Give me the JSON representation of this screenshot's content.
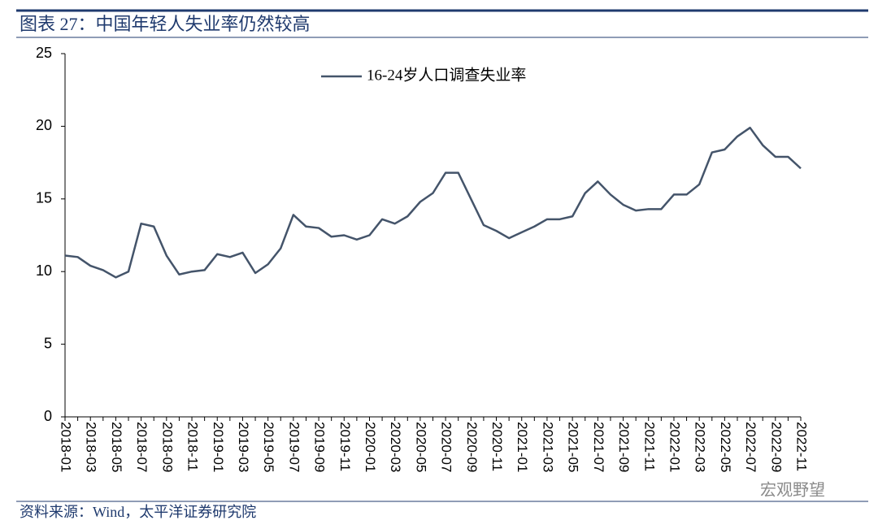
{
  "chart_data": {
    "type": "line",
    "title": "图表 27：中国年轻人失业率仍然较高",
    "source": "资料来源：Wind，太平洋证券研究院",
    "watermark": "宏观野望",
    "categories": [
      "2018-01",
      null,
      "2018-03",
      null,
      "2018-05",
      null,
      "2018-07",
      null,
      "2018-09",
      null,
      "2018-11",
      null,
      "2019-01",
      null,
      "2019-03",
      null,
      "2019-05",
      null,
      "2019-07",
      null,
      "2019-09",
      null,
      "2019-11",
      null,
      "2020-01",
      null,
      "2020-03",
      null,
      "2020-05",
      null,
      "2020-07",
      null,
      "2020-09",
      null,
      "2020-11",
      null,
      "2021-01",
      null,
      "2021-03",
      null,
      "2021-05",
      null,
      "2021-07",
      null,
      "2021-09",
      null,
      "2021-11",
      null,
      "2022-01",
      null,
      "2022-03",
      null,
      "2022-05",
      null,
      "2022-07",
      null,
      "2022-09",
      null,
      "2022-11"
    ],
    "series": [
      {
        "name": "16-24岁人口调查失业率",
        "color": "#44546a",
        "values": [
          11.1,
          11.0,
          10.4,
          10.1,
          9.6,
          10.0,
          13.3,
          13.1,
          11.1,
          9.8,
          10.0,
          10.1,
          11.2,
          11.0,
          11.3,
          9.9,
          10.5,
          11.6,
          13.9,
          13.1,
          13.0,
          12.4,
          12.5,
          12.2,
          12.5,
          13.6,
          13.3,
          13.8,
          14.8,
          15.4,
          16.8,
          16.8,
          15.0,
          13.2,
          12.8,
          12.3,
          12.7,
          13.1,
          13.6,
          13.6,
          13.8,
          15.4,
          16.2,
          15.3,
          14.6,
          14.2,
          14.3,
          14.3,
          15.3,
          15.3,
          16.0,
          18.2,
          18.4,
          19.3,
          19.9,
          18.7,
          17.9,
          17.9,
          17.1
        ]
      }
    ],
    "ylim": [
      0,
      25
    ],
    "yticks": [
      0,
      5,
      10,
      15,
      20,
      25
    ],
    "grid": false,
    "legend": "top"
  }
}
